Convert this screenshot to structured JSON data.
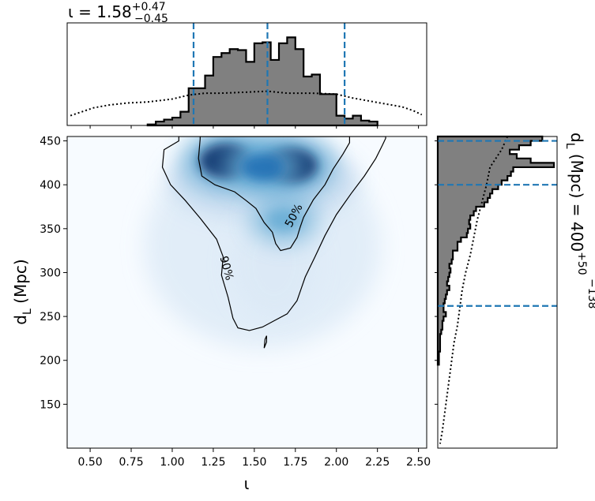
{
  "chart_data": {
    "type": "corner",
    "colors": {
      "histogram_fill": "#808080",
      "quantile_lines": "#1f77b4",
      "prior_line": "#000000",
      "density_cmap": "Blues"
    },
    "top_title": {
      "prefix": "ι = 1.58",
      "sup": "+0.47",
      "sub": "−0.45"
    },
    "right_title": {
      "prefix": "d",
      "prefix_sub": "L",
      "middle": " (Mpc) = 400",
      "sup": "+50",
      "sub": "−138"
    },
    "joint": {
      "xlabel": "ι",
      "ylabel": "d",
      "ylabel_sub": "L",
      "ylabel_unit": " (Mpc)",
      "xlim": [
        0.36,
        2.55
      ],
      "ylim": [
        100,
        455
      ],
      "xticks": [
        "0.50",
        "0.75",
        "1.00",
        "1.25",
        "1.50",
        "1.75",
        "2.00",
        "2.25",
        "2.50"
      ],
      "yticks": [
        "150",
        "200",
        "250",
        "300",
        "350",
        "400",
        "450"
      ],
      "density_peaks": [
        {
          "x": 1.33,
          "y": 427,
          "weight": 1.0
        },
        {
          "x": 1.72,
          "y": 422,
          "weight": 1.0
        },
        {
          "x": 1.55,
          "y": 420,
          "weight": 0.7
        },
        {
          "x": 1.68,
          "y": 360,
          "weight": 0.45
        }
      ],
      "contour_labels": [
        "50%",
        "90%"
      ],
      "contour_50": [
        [
          1.17,
          452
        ],
        [
          1.16,
          430
        ],
        [
          1.18,
          410
        ],
        [
          1.26,
          400
        ],
        [
          1.38,
          392
        ],
        [
          1.45,
          382
        ],
        [
          1.51,
          373
        ],
        [
          1.56,
          357
        ],
        [
          1.61,
          346
        ],
        [
          1.63,
          333
        ],
        [
          1.66,
          325
        ],
        [
          1.72,
          328
        ],
        [
          1.76,
          340
        ],
        [
          1.78,
          352
        ],
        [
          1.8,
          363
        ],
        [
          1.86,
          383
        ],
        [
          1.93,
          400
        ],
        [
          1.98,
          418
        ],
        [
          2.04,
          435
        ],
        [
          2.08,
          448
        ],
        [
          2.08,
          455
        ],
        [
          1.17,
          455
        ]
      ],
      "contour_90": [
        [
          1.04,
          450
        ],
        [
          0.95,
          440
        ],
        [
          0.94,
          420
        ],
        [
          0.99,
          400
        ],
        [
          1.08,
          382
        ],
        [
          1.17,
          362
        ],
        [
          1.27,
          338
        ],
        [
          1.31,
          318
        ],
        [
          1.3,
          297
        ],
        [
          1.34,
          272
        ],
        [
          1.37,
          248
        ],
        [
          1.4,
          237
        ],
        [
          1.47,
          234
        ],
        [
          1.55,
          238
        ],
        [
          1.63,
          246
        ],
        [
          1.7,
          253
        ],
        [
          1.76,
          268
        ],
        [
          1.81,
          295
        ],
        [
          1.87,
          318
        ],
        [
          1.93,
          342
        ],
        [
          2.0,
          366
        ],
        [
          2.09,
          390
        ],
        [
          2.17,
          410
        ],
        [
          2.24,
          430
        ],
        [
          2.28,
          445
        ],
        [
          2.3,
          453
        ],
        [
          2.3,
          455
        ],
        [
          1.04,
          455
        ]
      ],
      "contour_island": [
        [
          1.575,
          221
        ],
        [
          1.56,
          214
        ],
        [
          1.565,
          224
        ],
        [
          1.575,
          228
        ],
        [
          1.575,
          221
        ]
      ]
    },
    "top_marginal": {
      "quantiles": [
        1.13,
        1.58,
        2.05
      ],
      "bins": [
        0.875,
        0.925,
        0.975,
        1.025,
        1.075,
        1.125,
        1.175,
        1.225,
        1.275,
        1.325,
        1.375,
        1.425,
        1.475,
        1.525,
        1.575,
        1.625,
        1.675,
        1.725,
        1.775,
        1.825,
        1.875,
        1.925,
        1.975,
        2.025,
        2.075,
        2.125,
        2.175,
        2.225
      ],
      "posterior": [
        0.01,
        0.04,
        0.06,
        0.08,
        0.14,
        0.38,
        0.38,
        0.51,
        0.7,
        0.74,
        0.78,
        0.77,
        0.65,
        0.84,
        0.85,
        0.67,
        0.84,
        0.9,
        0.78,
        0.5,
        0.52,
        0.32,
        0.32,
        0.1,
        0.07,
        0.1,
        0.05,
        0.04
      ],
      "prior_x": [
        0.38,
        0.45,
        0.52,
        0.62,
        0.73,
        0.85,
        1.0,
        1.1,
        1.2,
        1.3,
        1.45,
        1.58,
        1.7,
        1.85,
        2.0,
        2.1,
        2.2,
        2.3,
        2.4,
        2.47,
        2.52
      ],
      "prior_y": [
        0.1,
        0.14,
        0.18,
        0.21,
        0.23,
        0.24,
        0.27,
        0.31,
        0.33,
        0.33,
        0.34,
        0.35,
        0.33,
        0.33,
        0.32,
        0.28,
        0.25,
        0.22,
        0.19,
        0.15,
        0.11
      ]
    },
    "right_marginal": {
      "quantiles": [
        262,
        400,
        450
      ],
      "bins": [
        452.5,
        447.5,
        442.5,
        437.5,
        432.5,
        427.5,
        422.5,
        417.5,
        412.5,
        407.5,
        402.5,
        397.5,
        392.5,
        387.5,
        382.5,
        377.5,
        372.5,
        367.5,
        362.5,
        357.5,
        352.5,
        347.5,
        342.5,
        337.5,
        332.5,
        327.5,
        322.5,
        317.5,
        312.5,
        307.5,
        302.5,
        297.5,
        292.5,
        287.5,
        282.5,
        277.5,
        272.5,
        267.5,
        262.5,
        257.5,
        252.5,
        247.5,
        242.5,
        237.5,
        232.5,
        227.5,
        222.5,
        217.5,
        212.5,
        207.5,
        202.5,
        197.5
      ],
      "posterior": [
        0.9,
        0.8,
        0.7,
        0.62,
        0.68,
        0.8,
        1.0,
        0.65,
        0.63,
        0.6,
        0.55,
        0.52,
        0.47,
        0.45,
        0.43,
        0.4,
        0.33,
        0.31,
        0.28,
        0.27,
        0.28,
        0.26,
        0.25,
        0.2,
        0.17,
        0.17,
        0.13,
        0.13,
        0.12,
        0.1,
        0.11,
        0.1,
        0.09,
        0.08,
        0.1,
        0.08,
        0.07,
        0.06,
        0.05,
        0.05,
        0.07,
        0.05,
        0.04,
        0.04,
        0.03,
        0.02,
        0.02,
        0.02,
        0.02,
        0.01,
        0.01,
        0.01
      ],
      "prior_d": [
        455,
        440,
        420,
        400,
        380,
        360,
        340,
        320,
        300,
        280,
        260,
        240,
        220,
        200,
        180,
        160,
        140,
        120,
        105
      ],
      "prior_w": [
        0.6,
        0.55,
        0.45,
        0.42,
        0.38,
        0.34,
        0.31,
        0.28,
        0.24,
        0.21,
        0.19,
        0.17,
        0.14,
        0.12,
        0.1,
        0.08,
        0.06,
        0.04,
        0.02
      ]
    }
  }
}
